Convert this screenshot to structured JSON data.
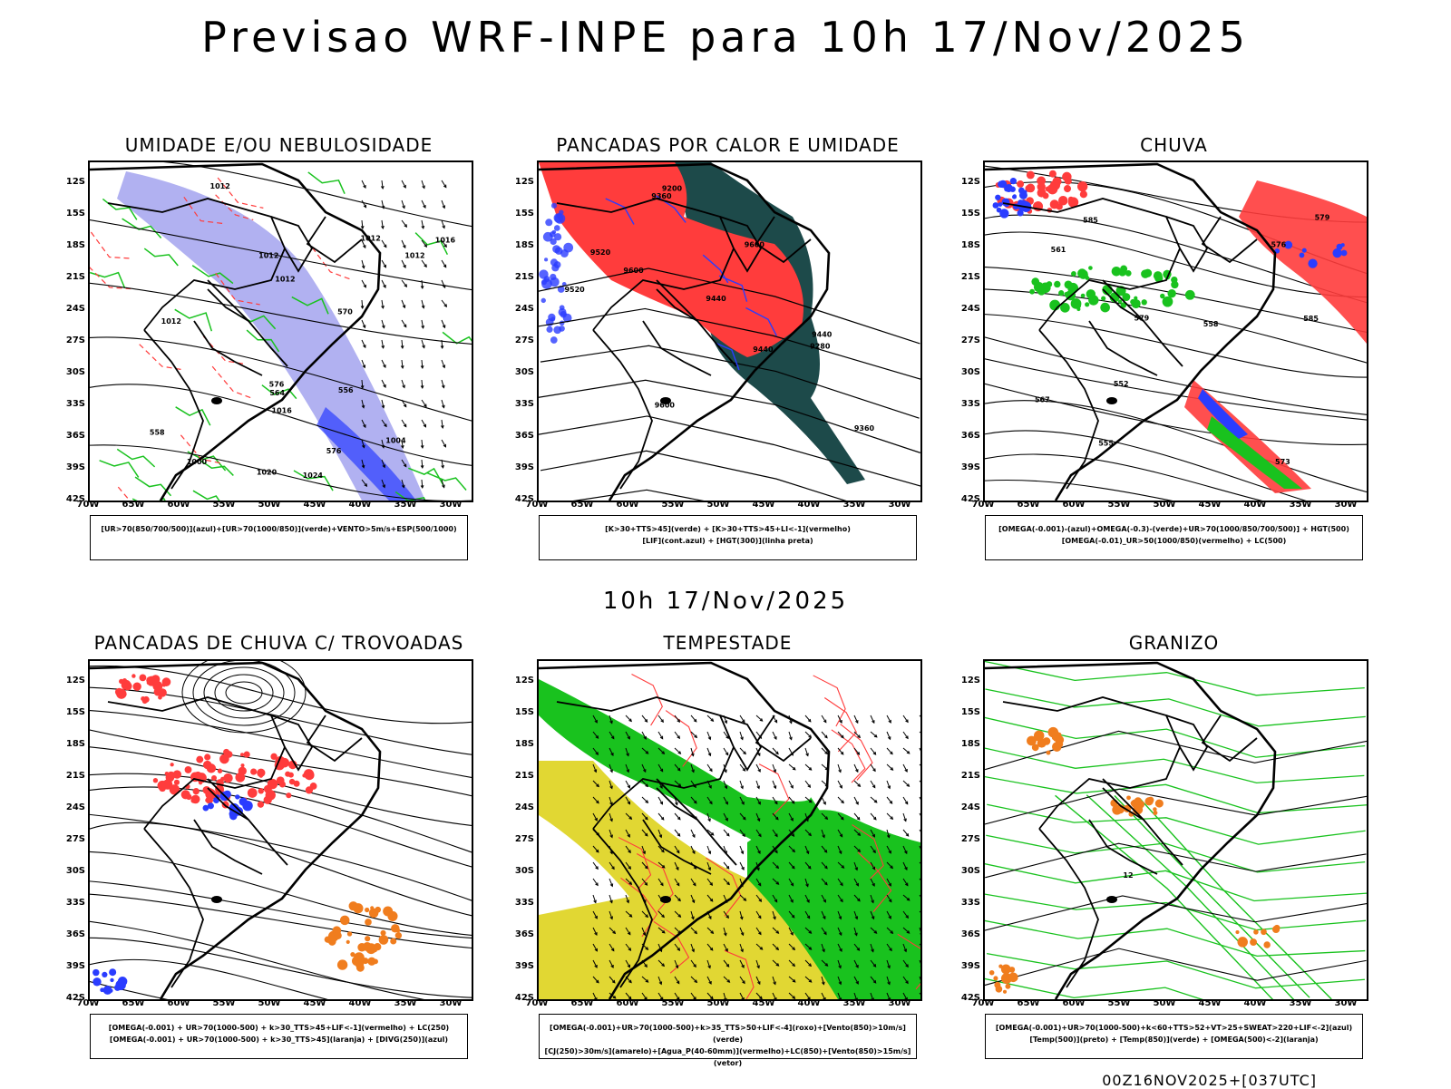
{
  "page": {
    "title": "Previsao WRF-INPE  para 10h 17/Nov/2025",
    "subtitle": "10h 17/Nov/2025",
    "footer": "00Z16NOV2025+[037UTC]"
  },
  "axes": {
    "lat_labels": [
      "12S",
      "15S",
      "18S",
      "21S",
      "24S",
      "27S",
      "30S",
      "33S",
      "36S",
      "39S",
      "42S"
    ],
    "lon_labels": [
      "70W",
      "65W",
      "60W",
      "55W",
      "50W",
      "45W",
      "40W",
      "35W",
      "30W"
    ]
  },
  "colors": {
    "blue": "#2a3cff",
    "lavender": "#a8a8f0",
    "green": "#19c21e",
    "red": "#ff3c3c",
    "teal": "#1d4a4a",
    "orange": "#f07d1e",
    "yellow": "#e1d733"
  },
  "panels": [
    {
      "title": "UMIDADE E/OU NEBULOSIDADE",
      "legend": [
        "[UR>70(850/700/500)](azul)+[UR>70(1000/850)](verde)+VENTO>5m/s+ESP(500/1000)"
      ],
      "labels": [
        "1012",
        "1012",
        "1012",
        "1012",
        "1016",
        "1016",
        "1012",
        "1012",
        "1020",
        "1024",
        "1004",
        "1000",
        "576",
        "576",
        "570",
        "564",
        "556",
        "558"
      ]
    },
    {
      "title": "PANCADAS POR CALOR E UMIDADE",
      "legend": [
        "[K>30+TTS>45](verde) + [K>30+TTS>45+LI<-1](vermelho)",
        "[LIF](cont.azul) + [HGT(300)](linha preta)"
      ],
      "labels": [
        "9600",
        "9520",
        "9440",
        "9360",
        "9600",
        "9600",
        "9520",
        "9440",
        "9360",
        "9280",
        "9200",
        "9440"
      ]
    },
    {
      "title": "CHUVA",
      "legend": [
        "[OMEGA(-0.001)-(azul)+OMEGA(-0.3)-(verde)+UR>70(1000/850/700/500)] + HGT(500)",
        "[OMEGA(-0.01)_UR>50(1000/850)(vermelho) + LC(500)"
      ],
      "labels": [
        "585",
        "585",
        "579",
        "573",
        "567",
        "561",
        "558",
        "555",
        "552",
        "579",
        "576"
      ]
    },
    {
      "title": "PANCADAS DE CHUVA C/ TROVOADAS",
      "legend": [
        "[OMEGA(-0.001) + UR>70(1000-500) + k>30_TTS>45+LIF<-1](vermelho) + LC(250)",
        "[OMEGA(-0.001) + UR>70(1000-500) + k>30_TTS>45](laranja) + [DIVG(250)](azul)"
      ],
      "labels": []
    },
    {
      "title": "TEMPESTADE",
      "legend": [
        "[OMEGA(-0.001)+UR>70(1000-500)+k>35_TTS>50+LIF<-4](roxo)+[Vento(850)>10m/s](verde)",
        "[CJ(250)>30m/s](amarelo)+[Agua_P(40-60mm)](vermelho)+LC(850)+[Vento(850)>15m/s](vetor)"
      ],
      "labels": []
    },
    {
      "title": "GRANIZO",
      "legend": [
        "[OMEGA(-0.001)+UR>70(1000-500)+k<60+TTS>52+VT>25+SWEAT>220+LIF<-2](azul)",
        "[Temp(500)](preto) + [Temp(850)](verde) + [OMEGA(500)<-2](laranja)"
      ],
      "labels": [
        "12"
      ]
    }
  ]
}
